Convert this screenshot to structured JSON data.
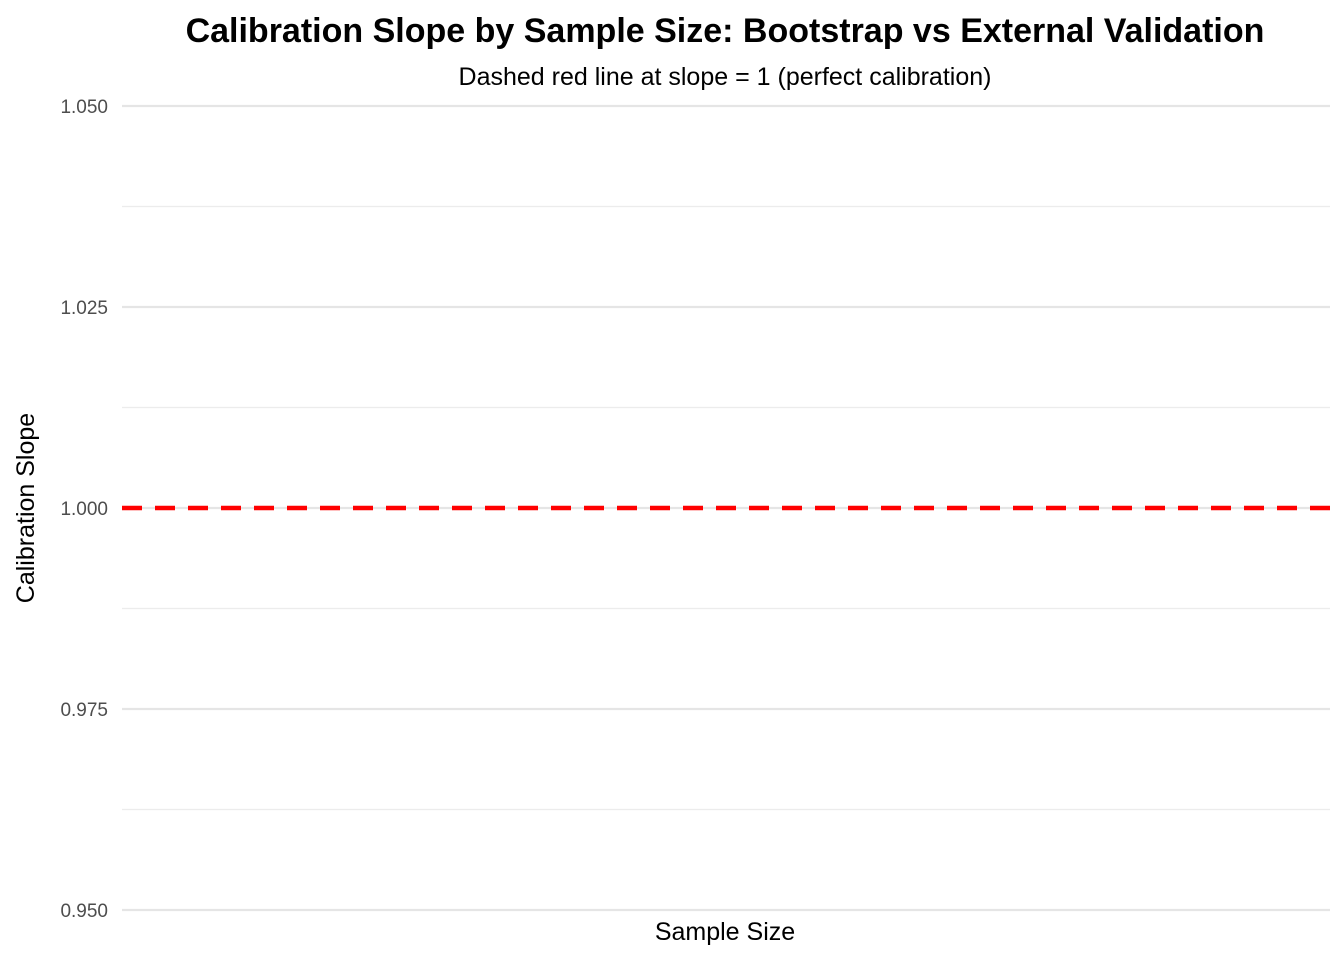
{
  "chart_data": {
    "type": "line",
    "title": "Calibration Slope by Sample Size: Bootstrap vs External Validation",
    "subtitle": "Dashed red line at slope = 1 (perfect calibration)",
    "xlabel": "Sample Size",
    "ylabel": "Calibration Slope",
    "ylim": [
      0.95,
      1.05
    ],
    "y_ticks": [
      0.95,
      0.975,
      1.0,
      1.025,
      1.05
    ],
    "y_tick_labels": [
      "0.950",
      "0.975",
      "1.000",
      "1.025",
      "1.050"
    ],
    "y_minor_ticks": [
      0.9625,
      0.9875,
      1.0125,
      1.0375
    ],
    "x_tick_labels": [],
    "series": [],
    "grid": true,
    "legend": "none",
    "reference_lines": [
      {
        "axis": "y",
        "value": 1.0,
        "style": "dashed",
        "color": "#ff0000"
      }
    ]
  }
}
